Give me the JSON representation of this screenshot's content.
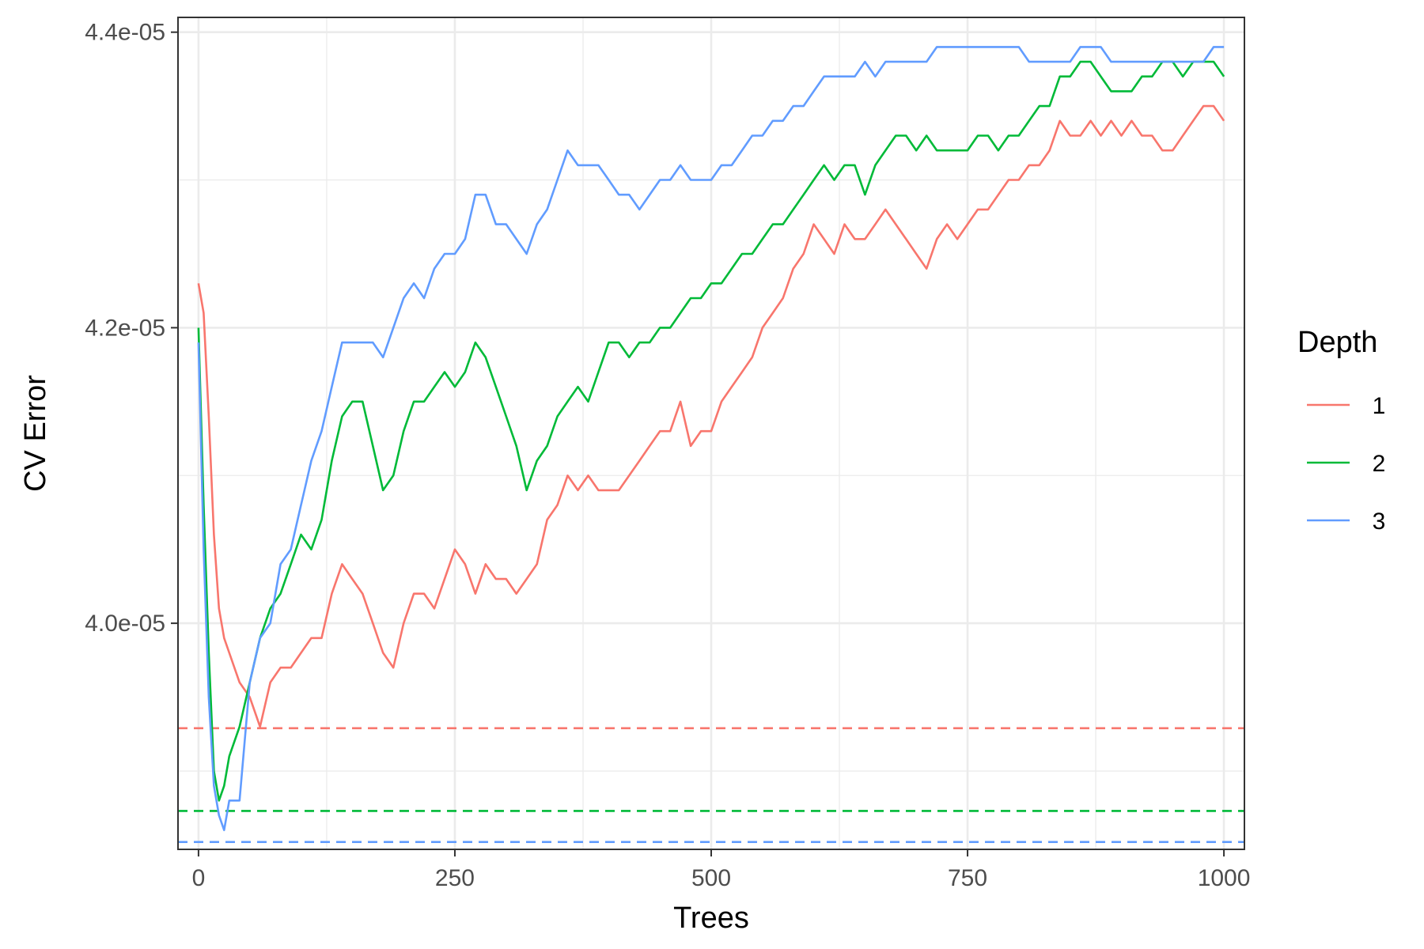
{
  "chart_data": {
    "type": "line",
    "xlabel": "Trees",
    "ylabel": "CV Error",
    "xlim": [
      -20,
      1020
    ],
    "ylim": [
      3.847e-05,
      4.41e-05
    ],
    "x_ticks": [
      0,
      250,
      500,
      750,
      1000
    ],
    "x_tick_labels": [
      "0",
      "250",
      "500",
      "750",
      "1000"
    ],
    "y_ticks": [
      4e-05,
      4.2e-05,
      4.4e-05
    ],
    "y_tick_labels": [
      "4.0e-05",
      "4.2e-05",
      "4.4e-05"
    ],
    "grid": true,
    "legend": {
      "title": "Depth",
      "position": "right",
      "entries": [
        "1",
        "2",
        "3"
      ]
    },
    "series": [
      {
        "name": "1",
        "color": "#F8766D",
        "x": [
          0,
          5,
          10,
          15,
          20,
          25,
          30,
          40,
          50,
          60,
          70,
          80,
          90,
          100,
          110,
          120,
          130,
          140,
          150,
          160,
          170,
          180,
          190,
          200,
          210,
          220,
          230,
          240,
          250,
          260,
          270,
          280,
          290,
          300,
          310,
          320,
          330,
          340,
          350,
          360,
          370,
          380,
          390,
          400,
          410,
          420,
          430,
          440,
          450,
          460,
          470,
          480,
          490,
          500,
          510,
          520,
          530,
          540,
          550,
          560,
          570,
          580,
          590,
          600,
          610,
          620,
          630,
          640,
          650,
          660,
          670,
          680,
          690,
          700,
          710,
          720,
          730,
          740,
          750,
          760,
          770,
          780,
          790,
          800,
          810,
          820,
          830,
          840,
          850,
          860,
          870,
          880,
          890,
          900,
          910,
          920,
          930,
          940,
          950,
          960,
          970,
          980,
          990,
          1000
        ],
        "y": [
          4.23e-05,
          4.21e-05,
          4.14e-05,
          4.06e-05,
          4.01e-05,
          3.99e-05,
          3.98e-05,
          3.96e-05,
          3.95e-05,
          3.93e-05,
          3.96e-05,
          3.97e-05,
          3.97e-05,
          3.98e-05,
          3.99e-05,
          3.99e-05,
          4.02e-05,
          4.04e-05,
          4.03e-05,
          4.02e-05,
          4e-05,
          3.98e-05,
          3.97e-05,
          4e-05,
          4.02e-05,
          4.02e-05,
          4.01e-05,
          4.03e-05,
          4.05e-05,
          4.04e-05,
          4.02e-05,
          4.04e-05,
          4.03e-05,
          4.03e-05,
          4.02e-05,
          4.03e-05,
          4.04e-05,
          4.07e-05,
          4.08e-05,
          4.1e-05,
          4.09e-05,
          4.1e-05,
          4.09e-05,
          4.09e-05,
          4.09e-05,
          4.1e-05,
          4.11e-05,
          4.12e-05,
          4.13e-05,
          4.13e-05,
          4.15e-05,
          4.12e-05,
          4.13e-05,
          4.13e-05,
          4.15e-05,
          4.16e-05,
          4.17e-05,
          4.18e-05,
          4.2e-05,
          4.21e-05,
          4.22e-05,
          4.24e-05,
          4.25e-05,
          4.27e-05,
          4.26e-05,
          4.25e-05,
          4.27e-05,
          4.26e-05,
          4.26e-05,
          4.27e-05,
          4.28e-05,
          4.27e-05,
          4.26e-05,
          4.25e-05,
          4.24e-05,
          4.26e-05,
          4.27e-05,
          4.26e-05,
          4.27e-05,
          4.28e-05,
          4.28e-05,
          4.29e-05,
          4.3e-05,
          4.3e-05,
          4.31e-05,
          4.31e-05,
          4.32e-05,
          4.34e-05,
          4.33e-05,
          4.33e-05,
          4.34e-05,
          4.33e-05,
          4.34e-05,
          4.33e-05,
          4.34e-05,
          4.33e-05,
          4.33e-05,
          4.32e-05,
          4.32e-05,
          4.33e-05,
          4.34e-05,
          4.35e-05,
          4.35e-05,
          4.34e-05
        ]
      },
      {
        "name": "2",
        "color": "#00BA38",
        "x": [
          0,
          5,
          10,
          15,
          20,
          25,
          30,
          40,
          50,
          60,
          70,
          80,
          90,
          100,
          110,
          120,
          130,
          140,
          150,
          160,
          170,
          180,
          190,
          200,
          210,
          220,
          230,
          240,
          250,
          260,
          270,
          280,
          290,
          300,
          310,
          320,
          330,
          340,
          350,
          360,
          370,
          380,
          390,
          400,
          410,
          420,
          430,
          440,
          450,
          460,
          470,
          480,
          490,
          500,
          510,
          520,
          530,
          540,
          550,
          560,
          570,
          580,
          590,
          600,
          610,
          620,
          630,
          640,
          650,
          660,
          670,
          680,
          690,
          700,
          710,
          720,
          730,
          740,
          750,
          760,
          770,
          780,
          790,
          800,
          810,
          820,
          830,
          840,
          850,
          860,
          870,
          880,
          890,
          900,
          910,
          920,
          930,
          940,
          950,
          960,
          970,
          980,
          990,
          1000
        ],
        "y": [
          4.2e-05,
          4.08e-05,
          3.98e-05,
          3.9e-05,
          3.88e-05,
          3.89e-05,
          3.91e-05,
          3.93e-05,
          3.96e-05,
          3.99e-05,
          4.01e-05,
          4.02e-05,
          4.04e-05,
          4.06e-05,
          4.05e-05,
          4.07e-05,
          4.11e-05,
          4.14e-05,
          4.15e-05,
          4.15e-05,
          4.12e-05,
          4.09e-05,
          4.1e-05,
          4.13e-05,
          4.15e-05,
          4.15e-05,
          4.16e-05,
          4.17e-05,
          4.16e-05,
          4.17e-05,
          4.19e-05,
          4.18e-05,
          4.16e-05,
          4.14e-05,
          4.12e-05,
          4.09e-05,
          4.11e-05,
          4.12e-05,
          4.14e-05,
          4.15e-05,
          4.16e-05,
          4.15e-05,
          4.17e-05,
          4.19e-05,
          4.19e-05,
          4.18e-05,
          4.19e-05,
          4.19e-05,
          4.2e-05,
          4.2e-05,
          4.21e-05,
          4.22e-05,
          4.22e-05,
          4.23e-05,
          4.23e-05,
          4.24e-05,
          4.25e-05,
          4.25e-05,
          4.26e-05,
          4.27e-05,
          4.27e-05,
          4.28e-05,
          4.29e-05,
          4.3e-05,
          4.31e-05,
          4.3e-05,
          4.31e-05,
          4.31e-05,
          4.29e-05,
          4.31e-05,
          4.32e-05,
          4.33e-05,
          4.33e-05,
          4.32e-05,
          4.33e-05,
          4.32e-05,
          4.32e-05,
          4.32e-05,
          4.32e-05,
          4.33e-05,
          4.33e-05,
          4.32e-05,
          4.33e-05,
          4.33e-05,
          4.34e-05,
          4.35e-05,
          4.35e-05,
          4.37e-05,
          4.37e-05,
          4.38e-05,
          4.38e-05,
          4.37e-05,
          4.36e-05,
          4.36e-05,
          4.36e-05,
          4.37e-05,
          4.37e-05,
          4.38e-05,
          4.38e-05,
          4.37e-05,
          4.38e-05,
          4.38e-05,
          4.38e-05,
          4.37e-05
        ]
      },
      {
        "name": "3",
        "color": "#619CFF",
        "x": [
          0,
          5,
          10,
          15,
          20,
          25,
          30,
          40,
          50,
          60,
          70,
          80,
          90,
          100,
          110,
          120,
          130,
          140,
          150,
          160,
          170,
          180,
          190,
          200,
          210,
          220,
          230,
          240,
          250,
          260,
          270,
          280,
          290,
          300,
          310,
          320,
          330,
          340,
          350,
          360,
          370,
          380,
          390,
          400,
          410,
          420,
          430,
          440,
          450,
          460,
          470,
          480,
          490,
          500,
          510,
          520,
          530,
          540,
          550,
          560,
          570,
          580,
          590,
          600,
          610,
          620,
          630,
          640,
          650,
          660,
          670,
          680,
          690,
          700,
          710,
          720,
          730,
          740,
          750,
          760,
          770,
          780,
          790,
          800,
          810,
          820,
          830,
          840,
          850,
          860,
          870,
          880,
          890,
          900,
          910,
          920,
          930,
          940,
          950,
          960,
          970,
          980,
          990,
          1000
        ],
        "y": [
          4.19e-05,
          4.05e-05,
          3.95e-05,
          3.89e-05,
          3.87e-05,
          3.86e-05,
          3.88e-05,
          3.88e-05,
          3.96e-05,
          3.99e-05,
          4e-05,
          4.04e-05,
          4.05e-05,
          4.08e-05,
          4.11e-05,
          4.13e-05,
          4.16e-05,
          4.19e-05,
          4.19e-05,
          4.19e-05,
          4.19e-05,
          4.18e-05,
          4.2e-05,
          4.22e-05,
          4.23e-05,
          4.22e-05,
          4.24e-05,
          4.25e-05,
          4.25e-05,
          4.26e-05,
          4.29e-05,
          4.29e-05,
          4.27e-05,
          4.27e-05,
          4.26e-05,
          4.25e-05,
          4.27e-05,
          4.28e-05,
          4.3e-05,
          4.32e-05,
          4.31e-05,
          4.31e-05,
          4.31e-05,
          4.3e-05,
          4.29e-05,
          4.29e-05,
          4.28e-05,
          4.29e-05,
          4.3e-05,
          4.3e-05,
          4.31e-05,
          4.3e-05,
          4.3e-05,
          4.3e-05,
          4.31e-05,
          4.31e-05,
          4.32e-05,
          4.33e-05,
          4.33e-05,
          4.34e-05,
          4.34e-05,
          4.35e-05,
          4.35e-05,
          4.36e-05,
          4.37e-05,
          4.37e-05,
          4.37e-05,
          4.37e-05,
          4.38e-05,
          4.37e-05,
          4.38e-05,
          4.38e-05,
          4.38e-05,
          4.38e-05,
          4.38e-05,
          4.39e-05,
          4.39e-05,
          4.39e-05,
          4.39e-05,
          4.39e-05,
          4.39e-05,
          4.39e-05,
          4.39e-05,
          4.39e-05,
          4.38e-05,
          4.38e-05,
          4.38e-05,
          4.38e-05,
          4.38e-05,
          4.39e-05,
          4.39e-05,
          4.39e-05,
          4.38e-05,
          4.38e-05,
          4.38e-05,
          4.38e-05,
          4.38e-05,
          4.38e-05,
          4.38e-05,
          4.38e-05,
          4.38e-05,
          4.38e-05,
          4.39e-05,
          4.39e-05
        ]
      }
    ],
    "reference_lines": [
      {
        "series": "1",
        "y": 3.929e-05,
        "style": "dashed",
        "color": "#F8766D"
      },
      {
        "series": "2",
        "y": 3.873e-05,
        "style": "dashed",
        "color": "#00BA38"
      },
      {
        "series": "3",
        "y": 3.852e-05,
        "style": "dashed",
        "color": "#619CFF"
      }
    ]
  }
}
